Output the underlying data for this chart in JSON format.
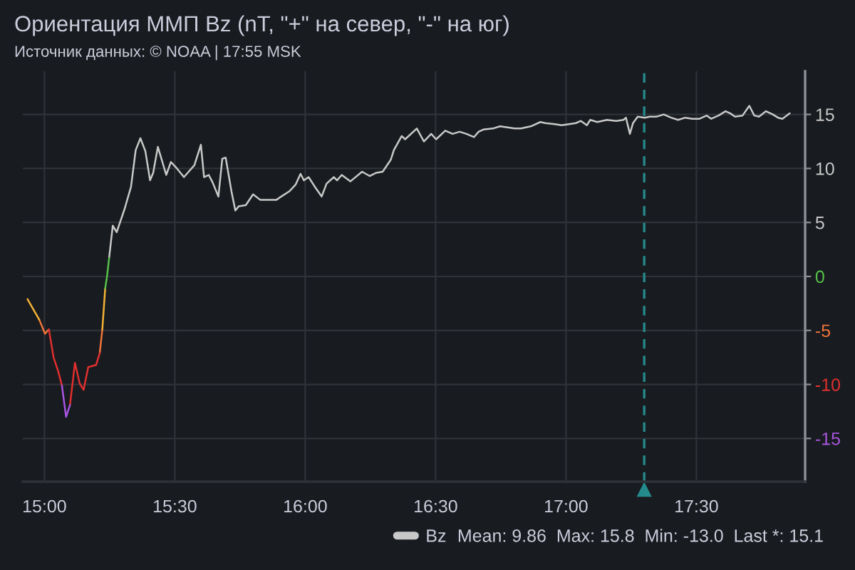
{
  "chart_data": {
    "type": "line",
    "title": "Ориентация ММП Bz (nT, \"+\" на север, \"-\" на юг)",
    "subtitle": "Источник данных: © NOAA | 17:55 MSK",
    "annotations": [
      "Mean: 9.86  Max: 15.8  Min: -13.0  Last *: 15.1"
    ],
    "series": [
      {
        "name": "Bz",
        "color": "#c8c8c8",
        "axis": "y2",
        "x": [
          15.248,
          15.262,
          15.277,
          15.308,
          15.332,
          15.35,
          15.368,
          15.387,
          15.405,
          15.417,
          15.435,
          15.467,
          15.485,
          15.508,
          15.535,
          15.553,
          15.575,
          15.6,
          15.612,
          15.63,
          15.645,
          15.667,
          15.682,
          15.695,
          15.717,
          15.732,
          15.745,
          15.772,
          15.8,
          15.827,
          15.89,
          15.908,
          15.94,
          15.963,
          15.982,
          15.995,
          16.013,
          16.037,
          16.063,
          16.082,
          16.11,
          16.122,
          16.14,
          16.173,
          16.218,
          16.247,
          16.273,
          16.297,
          16.328,
          16.34,
          16.37,
          16.383,
          16.428,
          16.455,
          16.483,
          16.502,
          16.537,
          16.565,
          16.592,
          16.618,
          16.647,
          16.665,
          16.683,
          16.72,
          16.747,
          16.775,
          16.802,
          16.828,
          16.865,
          16.902,
          16.92,
          16.957,
          16.983,
          17.012,
          17.038,
          17.057,
          17.08,
          17.093,
          17.12,
          17.157,
          17.193,
          17.22,
          17.23,
          17.245,
          17.257,
          17.275,
          17.302,
          17.32,
          17.348,
          17.375,
          17.403,
          17.43,
          17.457,
          17.485,
          17.512,
          17.54,
          17.557,
          17.585,
          17.612,
          17.63,
          17.648,
          17.677,
          17.703,
          17.722,
          17.74,
          17.767,
          17.793,
          17.813,
          17.83,
          17.858
        ],
        "values": [
          1.7,
          4.7,
          4.1,
          6.3,
          8.3,
          11.7,
          12.8,
          11.6,
          8.9,
          9.6,
          12.0,
          9.4,
          10.6,
          10.0,
          9.2,
          9.7,
          10.3,
          12.2,
          9.2,
          9.4,
          8.7,
          7.4,
          10.9,
          11.0,
          7.9,
          6.1,
          6.5,
          6.6,
          7.6,
          7.1,
          7.1,
          7.4,
          7.9,
          8.5,
          9.5,
          8.9,
          9.2,
          8.3,
          7.4,
          8.6,
          9.2,
          8.9,
          9.4,
          8.8,
          9.7,
          9.3,
          9.6,
          9.7,
          10.8,
          11.7,
          13.0,
          12.7,
          13.7,
          12.5,
          13.2,
          12.7,
          13.5,
          13.2,
          13.4,
          13.2,
          12.9,
          13.4,
          13.6,
          13.7,
          13.9,
          13.8,
          13.7,
          13.7,
          13.9,
          14.3,
          14.2,
          14.1,
          14.0,
          14.1,
          14.2,
          14.4,
          14.0,
          14.5,
          14.3,
          14.5,
          14.4,
          14.5,
          14.7,
          13.2,
          14.2,
          14.8,
          14.7,
          14.8,
          14.8,
          15.0,
          14.7,
          14.5,
          14.7,
          14.6,
          14.6,
          14.9,
          14.6,
          14.9,
          15.3,
          15.1,
          14.8,
          14.9,
          15.8,
          14.9,
          14.8,
          15.3,
          15.0,
          14.7,
          14.6,
          15.1
        ]
      },
      {
        "color": "#f0743a",
        "axis": "y2",
        "x": [
          14.98,
          15.002,
          15.017,
          15.035,
          15.212,
          15.222
        ],
        "values": [
          -4.0,
          -5.3,
          -4.9,
          null,
          -7.1,
          -4.9
        ]
      },
      {
        "color": "#e02f2f",
        "axis": "y2",
        "x": [
          15.017,
          15.035,
          15.053,
          15.067,
          15.083,
          15.098,
          15.117,
          15.135,
          15.15,
          15.168,
          15.198,
          15.212
        ],
        "values": [
          -4.9,
          -7.5,
          -8.8,
          -10.1,
          null,
          -11.9,
          -8.0,
          -9.9,
          -10.5,
          -8.4,
          -8.2,
          -7.1
        ]
      },
      {
        "color": "#a855e0",
        "axis": "y2",
        "x": [
          15.067,
          15.083,
          15.098
        ],
        "values": [
          -10.1,
          -13.0,
          -11.9
        ]
      },
      {
        "color": "#f2b134",
        "axis": "y2",
        "x": [
          14.935,
          14.98,
          15.002,
          15.222,
          15.233
        ],
        "values": [
          -2.1,
          -4.0,
          null,
          -4.9,
          -1.1
        ]
      },
      {
        "color": "#56c04a",
        "axis": "y2",
        "x": [
          15.233,
          15.24,
          15.248
        ],
        "values": [
          -1.1,
          0.0,
          1.7
        ]
      }
    ],
    "xlim": [
      14.917,
      17.917
    ],
    "xticks": [
      {
        "value": 15,
        "label": "15:00"
      },
      {
        "value": 15.5,
        "label": "15:30"
      },
      {
        "value": 16,
        "label": "16:00"
      },
      {
        "value": 16.5,
        "label": "16:30"
      },
      {
        "value": 17,
        "label": "17:00"
      },
      {
        "value": 17.5,
        "label": "17:30"
      }
    ],
    "y2lim": [
      -19,
      19
    ],
    "y2ticks": [
      -15,
      -10,
      -5,
      0,
      5,
      10,
      15
    ],
    "ref_lines": [
      {
        "axis": "x",
        "value": 17.3,
        "color": "#258a8c",
        "line_style": "dashed"
      }
    ],
    "grid": true,
    "legend": "bottom right",
    "line_style": "solid"
  }
}
